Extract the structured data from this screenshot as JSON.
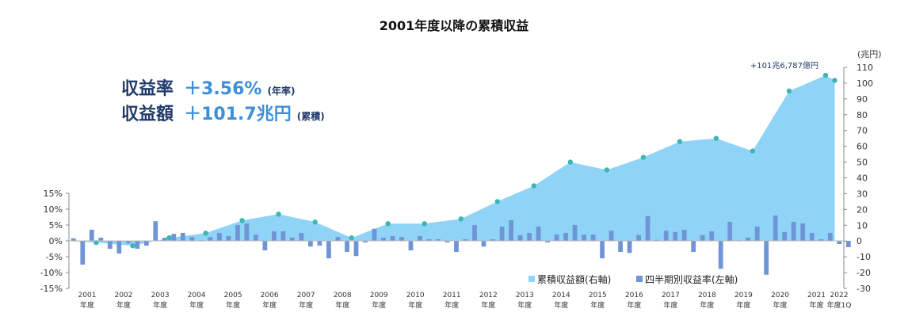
{
  "chart_data": {
    "type": "bar+area",
    "title": "2001年度以降の累積収益",
    "kpis": [
      {
        "label": "収益率",
        "value": "＋3.56%",
        "note": "(年率)"
      },
      {
        "label": "収益額",
        "value": "＋101.7兆円",
        "note": "(累積)"
      }
    ],
    "right_axis_unit": "(兆円)",
    "right_axis_ticks": [
      "110",
      "100",
      "90",
      "80",
      "70",
      "60",
      "50",
      "40",
      "30",
      "20",
      "10",
      "0",
      "-10",
      "-20",
      "-30"
    ],
    "left_axis_ticks": [
      "15%",
      "10%",
      "5%",
      "0%",
      "-5%",
      "-10%",
      "-15%"
    ],
    "ylim_left": [
      -15,
      15
    ],
    "ylim_right": [
      -30,
      110
    ],
    "x_year_labels": [
      "2001",
      "2002",
      "2003",
      "2004",
      "2005",
      "2006",
      "2007",
      "2008",
      "2009",
      "2010",
      "2011",
      "2012",
      "2013",
      "2014",
      "2015",
      "2016",
      "2017",
      "2018",
      "2019",
      "2020",
      "2021",
      "2022"
    ],
    "x_sub_labels": [
      "年度",
      "年度",
      "年度",
      "年度",
      "年度",
      "年度",
      "年度",
      "年度",
      "年度",
      "年度",
      "年度",
      "年度",
      "年度",
      "年度",
      "年度",
      "年度",
      "年度",
      "年度",
      "年度",
      "年度",
      "年度",
      "年度1Q"
    ],
    "quarterly_return_pct": [
      0.8,
      -7.5,
      3.5,
      1.0,
      -2.5,
      -4.0,
      -0.8,
      -2.5,
      -1.5,
      6.2,
      1.0,
      2.2,
      2.5,
      1.2,
      0.2,
      1.2,
      2.5,
      1.5,
      5.0,
      5.5,
      2.0,
      -3.0,
      3.0,
      3.0,
      1.0,
      2.5,
      -1.8,
      -1.5,
      -5.5,
      1.2,
      -3.5,
      -4.8,
      -0.5,
      3.8,
      1.0,
      1.5,
      1.2,
      -3.0,
      1.5,
      0.5,
      0.5,
      -0.5,
      -3.5,
      0.5,
      5.0,
      -1.8,
      0.5,
      4.5,
      6.5,
      1.8,
      2.5,
      4.5,
      -0.5,
      2.0,
      2.5,
      5.0,
      2.0,
      2.0,
      -5.5,
      3.2,
      -3.5,
      -3.8,
      1.8,
      7.8,
      0.3,
      3.2,
      2.8,
      3.5,
      -3.5,
      1.8,
      3.0,
      -8.8,
      6.0,
      0.2,
      1.0,
      4.5,
      -10.7,
      8.0,
      2.8,
      6.0,
      5.5,
      2.5,
      0.5,
      2.5,
      -1.0,
      -2.0
    ],
    "cumulative_trillion_yen": [
      {
        "x": 2001.0,
        "y": 0
      },
      {
        "x": 2001.75,
        "y": -1
      },
      {
        "x": 2002.75,
        "y": -3
      },
      {
        "x": 2003.75,
        "y": 2
      },
      {
        "x": 2004.75,
        "y": 5
      },
      {
        "x": 2005.75,
        "y": 13
      },
      {
        "x": 2006.75,
        "y": 17
      },
      {
        "x": 2007.75,
        "y": 12
      },
      {
        "x": 2008.75,
        "y": 2
      },
      {
        "x": 2009.75,
        "y": 11
      },
      {
        "x": 2010.75,
        "y": 11
      },
      {
        "x": 2011.75,
        "y": 14
      },
      {
        "x": 2012.75,
        "y": 25
      },
      {
        "x": 2013.75,
        "y": 35
      },
      {
        "x": 2014.75,
        "y": 50
      },
      {
        "x": 2015.75,
        "y": 45
      },
      {
        "x": 2016.75,
        "y": 53
      },
      {
        "x": 2017.75,
        "y": 63
      },
      {
        "x": 2018.75,
        "y": 65
      },
      {
        "x": 2019.75,
        "y": 57
      },
      {
        "x": 2020.75,
        "y": 95
      },
      {
        "x": 2021.75,
        "y": 105
      },
      {
        "x": 2022.0,
        "y": 101.7
      }
    ],
    "annotation": "+101兆6,787億円",
    "legend": [
      {
        "name": "累積収益額(右軸)",
        "color": "#8fd3f7"
      },
      {
        "name": "四半期別収益率(左軸)",
        "color": "#6f95d6"
      }
    ],
    "colors": {
      "area": "#8fd3f7",
      "bar": "#6f95d6",
      "marker": "#3cb6b2",
      "axis": "#888888"
    }
  }
}
